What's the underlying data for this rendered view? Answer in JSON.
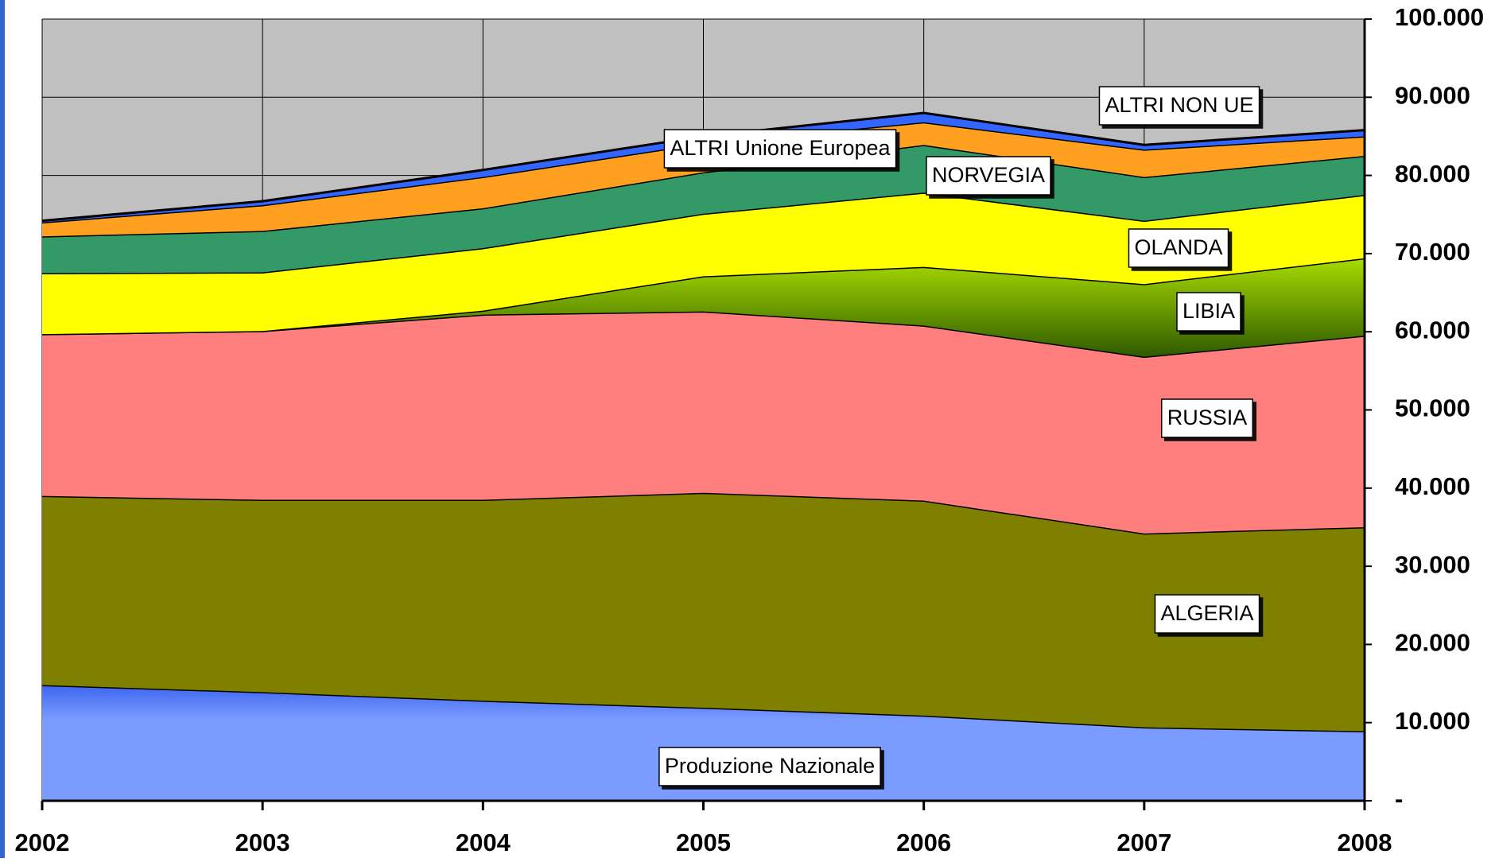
{
  "chart_data": {
    "type": "stacked_area",
    "categories": [
      "2002",
      "2003",
      "2004",
      "2005",
      "2006",
      "2007",
      "2008"
    ],
    "series": [
      {
        "name": "Produzione Nazionale",
        "color": "#7a9bff",
        "values": [
          14800,
          13900,
          12800,
          11900,
          10900,
          9400,
          8900
        ]
      },
      {
        "name": "ALGERIA",
        "color": "#808000",
        "values": [
          24200,
          24600,
          25700,
          27500,
          27500,
          24800,
          26100
        ]
      },
      {
        "name": "RUSSIA",
        "color": "#ff7f7f",
        "values": [
          20700,
          21600,
          23700,
          23200,
          22400,
          22600,
          24500
        ]
      },
      {
        "name": "LIBIA",
        "color": "#7fb000",
        "values": [
          0,
          0,
          500,
          4500,
          7500,
          9300,
          9900
        ]
      },
      {
        "name": "OLANDA",
        "color": "#ffff00",
        "values": [
          7800,
          7500,
          8000,
          8000,
          9500,
          8100,
          8100
        ]
      },
      {
        "name": "NORVEGIA",
        "color": "#339966",
        "values": [
          4700,
          5300,
          5100,
          5300,
          6100,
          5600,
          5000
        ]
      },
      {
        "name": "ALTRI  Unione Europea",
        "color": "#ffa020",
        "values": [
          1800,
          3300,
          4000,
          3700,
          2900,
          3500,
          2500
        ]
      },
      {
        "name": "ALTRI NON  UE",
        "color": "#3366ff",
        "values": [
          200,
          500,
          900,
          900,
          1200,
          600,
          800
        ]
      }
    ],
    "ylim": [
      0,
      100000
    ],
    "yticks": [
      {
        "value": 0,
        "label": "-"
      },
      {
        "value": 10000,
        "label": "10.000"
      },
      {
        "value": 20000,
        "label": "20.000"
      },
      {
        "value": 30000,
        "label": "30.000"
      },
      {
        "value": 40000,
        "label": "40.000"
      },
      {
        "value": 50000,
        "label": "50.000"
      },
      {
        "value": 60000,
        "label": "60.000"
      },
      {
        "value": 70000,
        "label": "70.000"
      },
      {
        "value": 80000,
        "label": "80.000"
      },
      {
        "value": 90000,
        "label": "90.000"
      },
      {
        "value": 100000,
        "label": "100.000"
      }
    ],
    "grid": true
  }
}
